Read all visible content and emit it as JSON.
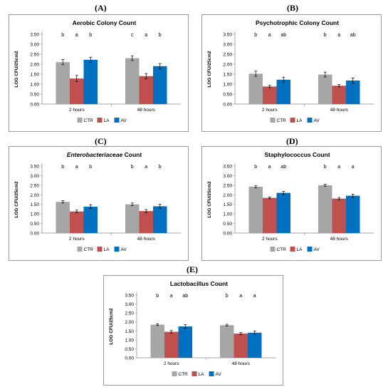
{
  "colors": {
    "CTR": "#a6a6a6",
    "LA": "#c0504d",
    "AV": "#0070c0",
    "axis": "#868686",
    "text": "#000000"
  },
  "chart_data": [
    {
      "panel_label": "(A)",
      "type": "bar",
      "title": "Aerobic Colony Count",
      "title_italic": false,
      "ylabel": "LOG CFU/25cm2",
      "ylim": [
        0,
        3.5
      ],
      "yticks": [
        "0.00",
        "0.50",
        "1.00",
        "1.50",
        "2.00",
        "2.50",
        "3.00",
        "3.50"
      ],
      "categories": [
        "2 hours",
        "48 hours"
      ],
      "series": [
        {
          "name": "CTR",
          "values": [
            2.1,
            2.3
          ],
          "errors": [
            0.13,
            0.12
          ]
        },
        {
          "name": "LA",
          "values": [
            1.28,
            1.4
          ],
          "errors": [
            0.15,
            0.13
          ]
        },
        {
          "name": "AV",
          "values": [
            2.22,
            1.9
          ],
          "errors": [
            0.13,
            0.13
          ]
        }
      ],
      "annotations": [
        [
          "b",
          "a",
          "b"
        ],
        [
          "c",
          "a",
          "b"
        ]
      ],
      "legend": "bottom"
    },
    {
      "panel_label": "(B)",
      "type": "bar",
      "title": "Psychotrophic Colony Count",
      "title_italic": false,
      "ylabel": "LOG CFU/25cm2",
      "ylim": [
        0,
        3.5
      ],
      "yticks": [
        "0.00",
        "0.50",
        "1.00",
        "1.50",
        "2.00",
        "2.50",
        "3.00",
        "3.50"
      ],
      "categories": [
        "2 hours",
        "48 hours"
      ],
      "series": [
        {
          "name": "CTR",
          "values": [
            1.52,
            1.48
          ],
          "errors": [
            0.13,
            0.12
          ]
        },
        {
          "name": "LA",
          "values": [
            0.88,
            0.92
          ],
          "errors": [
            0.06,
            0.06
          ]
        },
        {
          "name": "AV",
          "values": [
            1.22,
            1.18
          ],
          "errors": [
            0.13,
            0.13
          ]
        }
      ],
      "annotations": [
        [
          "b",
          "a",
          "ab"
        ],
        [
          "b",
          "a",
          "ab"
        ]
      ],
      "legend": "bottom"
    },
    {
      "panel_label": "(C)",
      "type": "bar",
      "title": "Enterobacteriaceae Count",
      "title_italic": true,
      "title_suffix": " Count",
      "title_main": "Enterobacteriaceae",
      "ylabel": "LOG CFU/25cm2",
      "ylim": [
        0,
        3.5
      ],
      "yticks": [
        "0.00",
        "0.50",
        "1.00",
        "1.50",
        "2.00",
        "2.50",
        "3.00",
        "3.50"
      ],
      "categories": [
        "2 hours",
        "48 hours"
      ],
      "series": [
        {
          "name": "CTR",
          "values": [
            1.63,
            1.5
          ],
          "errors": [
            0.06,
            0.07
          ]
        },
        {
          "name": "LA",
          "values": [
            1.13,
            1.15
          ],
          "errors": [
            0.07,
            0.08
          ]
        },
        {
          "name": "AV",
          "values": [
            1.38,
            1.4
          ],
          "errors": [
            0.1,
            0.11
          ]
        }
      ],
      "annotations": [
        [
          "b",
          "a",
          "b"
        ],
        [
          "b",
          "a",
          "b"
        ]
      ],
      "legend": "bottom"
    },
    {
      "panel_label": "(D)",
      "type": "bar",
      "title": "Staphylococcus Count",
      "title_italic": false,
      "ylabel": "LOG CFU/25cm2",
      "ylim": [
        0,
        3.5
      ],
      "yticks": [
        "0.00",
        "0.50",
        "1.00",
        "1.50",
        "2.00",
        "2.50",
        "3.00",
        "3.50"
      ],
      "categories": [
        "2 hours",
        "48 hours"
      ],
      "series": [
        {
          "name": "CTR",
          "values": [
            2.42,
            2.5
          ],
          "errors": [
            0.05,
            0.05
          ]
        },
        {
          "name": "LA",
          "values": [
            1.84,
            1.8
          ],
          "errors": [
            0.05,
            0.06
          ]
        },
        {
          "name": "AV",
          "values": [
            2.1,
            1.95
          ],
          "errors": [
            0.08,
            0.08
          ]
        }
      ],
      "annotations": [
        [
          "b",
          "a",
          "ab"
        ],
        [
          "b",
          "a",
          "a"
        ]
      ],
      "legend": "bottom"
    },
    {
      "panel_label": "(E)",
      "type": "bar",
      "title": "Lactobacillus Count",
      "title_italic": false,
      "ylabel": "LOG CFU/25cm2",
      "ylim": [
        0,
        3.5
      ],
      "yticks": [
        "0.00",
        "0.50",
        "1.00",
        "1.50",
        "2.00",
        "2.50",
        "3.00",
        "3.50"
      ],
      "categories": [
        "2 hours",
        "48 hours"
      ],
      "series": [
        {
          "name": "CTR",
          "values": [
            1.85,
            1.82
          ],
          "errors": [
            0.05,
            0.05
          ]
        },
        {
          "name": "LA",
          "values": [
            1.45,
            1.35
          ],
          "errors": [
            0.07,
            0.06
          ]
        },
        {
          "name": "AV",
          "values": [
            1.75,
            1.4
          ],
          "errors": [
            0.1,
            0.1
          ]
        }
      ],
      "annotations": [
        [
          "b",
          "a",
          "ab"
        ],
        [
          "b",
          "a",
          "a"
        ]
      ],
      "legend": "bottom"
    }
  ]
}
